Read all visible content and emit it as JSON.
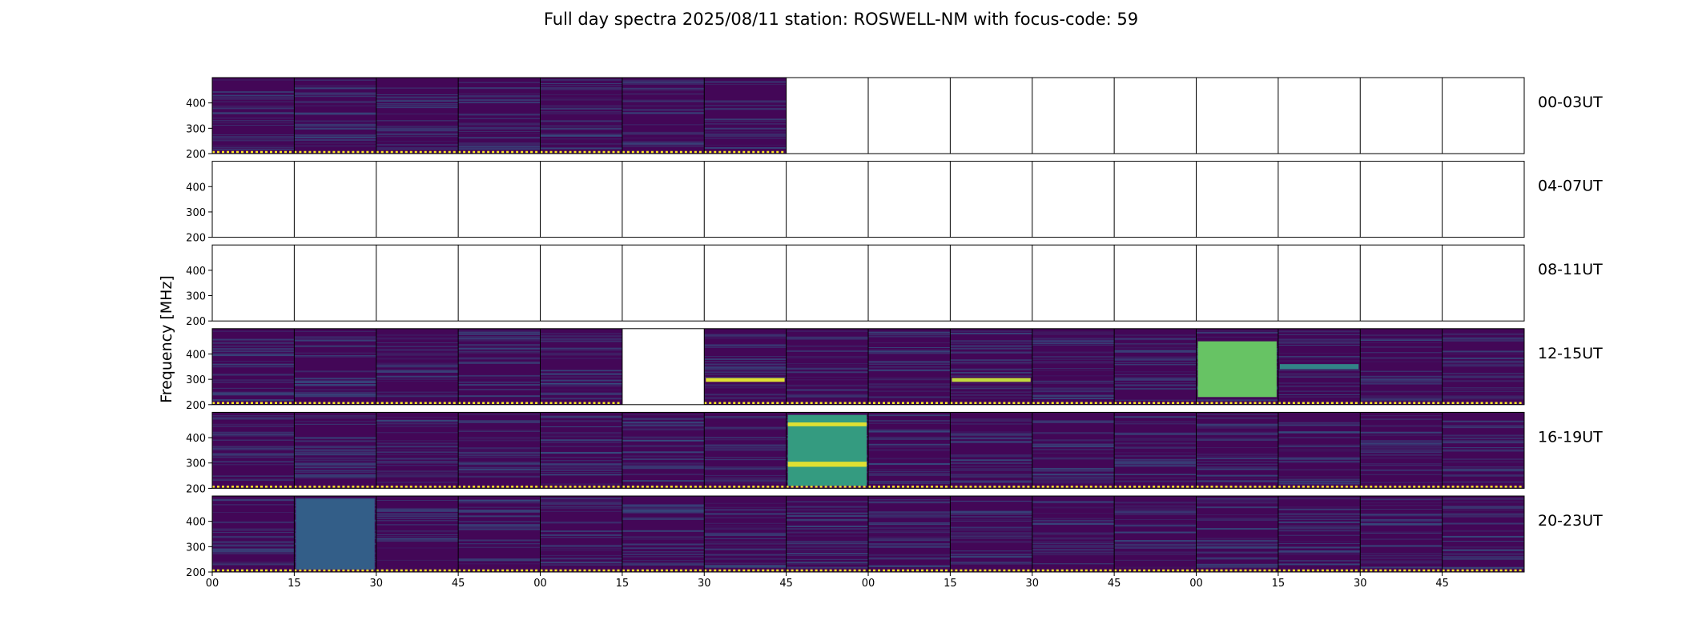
{
  "chart_data": {
    "type": "heatmap",
    "title": "Full day spectra 2025/08/11 station: ROSWELL-NM with focus-code: 59",
    "ylabel": "Frequency [MHz]",
    "ylim": [
      200,
      500
    ],
    "yticks": [
      200,
      300,
      400
    ],
    "xtick_labels": [
      "00",
      "15",
      "30",
      "45",
      "00",
      "15",
      "30",
      "45",
      "00",
      "15",
      "30",
      "45",
      "00",
      "15",
      "30",
      "45"
    ],
    "colormap": [
      "#440154",
      "#31688e",
      "#35b779",
      "#fde725"
    ],
    "panels_per_row": 16,
    "rows": [
      {
        "label": "00-03UT",
        "data_panels": [
          0,
          1,
          2,
          3,
          4,
          5,
          6
        ],
        "bursts": []
      },
      {
        "label": "04-07UT",
        "data_panels": [],
        "bursts": []
      },
      {
        "label": "08-11UT",
        "data_panels": [],
        "bursts": []
      },
      {
        "label": "12-15UT",
        "data_panels": [
          0,
          1,
          2,
          3,
          4,
          6,
          7,
          8,
          9,
          10,
          11,
          12,
          13,
          14,
          15
        ],
        "bursts": [
          {
            "panel": 6,
            "freq": [
              290,
              305
            ],
            "level": 0.95
          },
          {
            "panel": 9,
            "freq": [
              290,
              305
            ],
            "level": 0.9
          },
          {
            "panel": 12,
            "freq": [
              230,
              450
            ],
            "level": 0.75
          },
          {
            "panel": 13,
            "freq": [
              340,
              360
            ],
            "level": 0.45
          }
        ]
      },
      {
        "label": "16-19UT",
        "data_panels": [
          0,
          1,
          2,
          3,
          4,
          5,
          6,
          7,
          8,
          9,
          10,
          11,
          12,
          13,
          14,
          15
        ],
        "bursts": [
          {
            "panel": 7,
            "freq": [
              210,
              490
            ],
            "level": 0.55
          },
          {
            "panel": 7,
            "freq": [
              285,
              305
            ],
            "level": 0.95
          },
          {
            "panel": 7,
            "freq": [
              445,
              460
            ],
            "level": 0.95
          }
        ]
      },
      {
        "label": "20-23UT",
        "data_panels": [
          0,
          1,
          2,
          3,
          4,
          5,
          6,
          7,
          8,
          9,
          10,
          11,
          12,
          13,
          14,
          15
        ],
        "bursts": [
          {
            "panel": 1,
            "freq": [
              210,
              490
            ],
            "level": 0.3
          }
        ]
      }
    ]
  }
}
